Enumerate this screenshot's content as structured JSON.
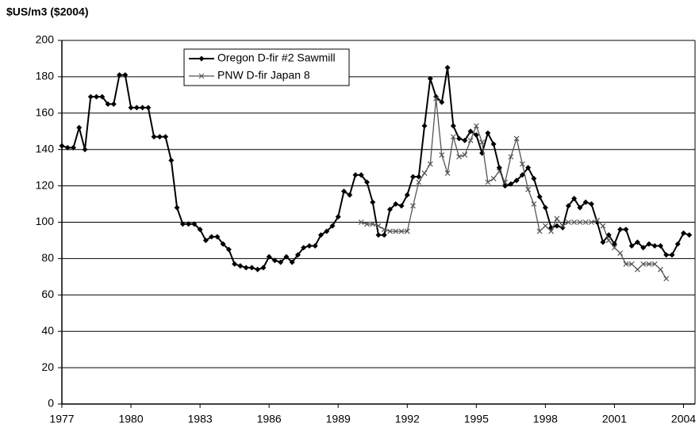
{
  "chart_data": {
    "type": "line",
    "y_label": "$US/m3 ($2004)",
    "x": [
      1977,
      1977.25,
      1977.5,
      1977.75,
      1978,
      1978.25,
      1978.5,
      1978.75,
      1979,
      1979.25,
      1979.5,
      1979.75,
      1980,
      1980.25,
      1980.5,
      1980.75,
      1981,
      1981.25,
      1981.5,
      1981.75,
      1982,
      1982.25,
      1982.5,
      1982.75,
      1983,
      1983.25,
      1983.5,
      1983.75,
      1984,
      1984.25,
      1984.5,
      1984.75,
      1985,
      1985.25,
      1985.5,
      1985.75,
      1986,
      1986.25,
      1986.5,
      1986.75,
      1987,
      1987.25,
      1987.5,
      1987.75,
      1988,
      1988.25,
      1988.5,
      1988.75,
      1989,
      1989.25,
      1989.5,
      1989.75,
      1990,
      1990.25,
      1990.5,
      1990.75,
      1991,
      1991.25,
      1991.5,
      1991.75,
      1992,
      1992.25,
      1992.5,
      1992.75,
      1993,
      1993.25,
      1993.5,
      1993.75,
      1994,
      1994.25,
      1994.5,
      1994.75,
      1995,
      1995.25,
      1995.5,
      1995.75,
      1996,
      1996.25,
      1996.5,
      1996.75,
      1997,
      1997.25,
      1997.5,
      1997.75,
      1998,
      1998.25,
      1998.5,
      1998.75,
      1999,
      1999.25,
      1999.5,
      1999.75,
      2000,
      2000.25,
      2000.5,
      2000.75,
      2001,
      2001.25,
      2001.5,
      2001.75,
      2002,
      2002.25,
      2002.5,
      2002.75,
      2003,
      2003.25,
      2003.5,
      2003.75,
      2004,
      2004.25
    ],
    "series": [
      {
        "name": "Oregon D-fir #2 Sawmill",
        "color": "#000000",
        "marker": "diamond",
        "values": [
          142,
          141,
          141,
          152,
          140,
          169,
          169,
          169,
          165,
          165,
          181,
          181,
          163,
          163,
          163,
          163,
          147,
          147,
          147,
          134,
          108,
          99,
          99,
          99,
          96,
          90,
          92,
          92,
          88,
          85,
          77,
          76,
          75,
          75,
          74,
          75,
          81,
          79,
          78,
          81,
          78,
          82,
          86,
          87,
          87,
          93,
          95,
          98,
          103,
          117,
          115,
          126,
          126,
          122,
          111,
          93,
          93,
          107,
          110,
          109,
          115,
          125,
          125,
          153,
          179,
          169,
          166,
          185,
          153,
          146,
          145,
          150,
          148,
          138,
          149,
          143,
          130,
          120,
          121,
          123,
          126,
          130,
          124,
          114,
          108,
          97,
          98,
          97,
          109,
          113,
          108,
          111,
          110,
          100,
          89,
          93,
          88,
          96,
          96,
          87,
          89,
          86,
          88,
          87,
          87,
          82,
          82,
          88,
          94,
          93
        ]
      },
      {
        "name": "PNW D-fir Japan 8",
        "color": "#555555",
        "marker": "x",
        "values": [
          null,
          null,
          null,
          null,
          null,
          null,
          null,
          null,
          null,
          null,
          null,
          null,
          null,
          null,
          null,
          null,
          null,
          null,
          null,
          null,
          null,
          null,
          null,
          null,
          null,
          null,
          null,
          null,
          null,
          null,
          null,
          null,
          null,
          null,
          null,
          null,
          null,
          null,
          null,
          null,
          null,
          null,
          null,
          null,
          null,
          null,
          null,
          null,
          null,
          null,
          null,
          null,
          100,
          99,
          99,
          98,
          96,
          95,
          95,
          95,
          95,
          109,
          122,
          127,
          132,
          168,
          137,
          127,
          147,
          136,
          137,
          145,
          153,
          144,
          122,
          124,
          128,
          122,
          136,
          146,
          132,
          118,
          110,
          95,
          98,
          95,
          102,
          98,
          100,
          100,
          100,
          100,
          100,
          101,
          98,
          90,
          86,
          83,
          77,
          77,
          74,
          77,
          77,
          77,
          74,
          69,
          null,
          null,
          null,
          null
        ]
      }
    ],
    "xlim": [
      1977,
      2004.5
    ],
    "xticks": [
      1977,
      1980,
      1983,
      1986,
      1989,
      1992,
      1995,
      1998,
      2001,
      2004
    ],
    "ylim": [
      0,
      200
    ],
    "yticks": [
      0,
      20,
      40,
      60,
      80,
      100,
      120,
      140,
      160,
      180,
      200
    ],
    "grid": true
  }
}
